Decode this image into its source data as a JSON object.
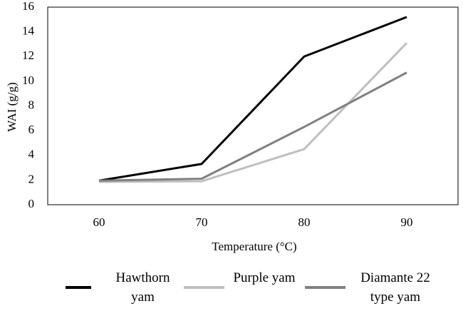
{
  "chart_data": {
    "type": "line",
    "y_label": "WAI (g/g)",
    "x_label": "Temperature (°C)",
    "categories": [
      "60",
      "70",
      "80",
      "90"
    ],
    "series": [
      {
        "name": "Hawthorn yam",
        "color": "#000000",
        "values": [
          1.95,
          3.3,
          12.0,
          15.2
        ]
      },
      {
        "name": "Purple yam",
        "color": "#bfbfbf",
        "values": [
          1.85,
          1.9,
          4.5,
          13.1
        ]
      },
      {
        "name": "Diamante 22 type yam",
        "color": "#808080",
        "values": [
          1.95,
          2.1,
          6.3,
          10.7
        ]
      }
    ],
    "ylim": [
      0,
      16
    ],
    "yticks": [
      0,
      2,
      4,
      6,
      8,
      10,
      12,
      14,
      16
    ],
    "grid": false
  }
}
